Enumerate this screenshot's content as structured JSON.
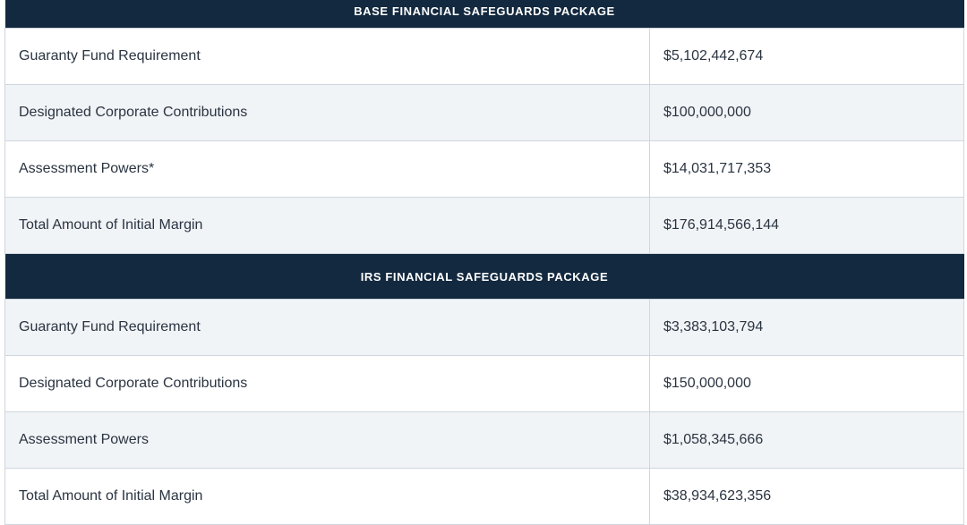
{
  "sections": [
    {
      "title": "BASE FINANCIAL SAFEGUARDS PACKAGE",
      "rows": [
        {
          "label": "Guaranty Fund Requirement",
          "value": "$5,102,442,674"
        },
        {
          "label": "Designated Corporate Contributions",
          "value": "$100,000,000"
        },
        {
          "label": "Assessment Powers*",
          "value": "$14,031,717,353"
        },
        {
          "label": "Total Amount of Initial Margin",
          "value": "$176,914,566,144"
        }
      ]
    },
    {
      "title": "IRS FINANCIAL SAFEGUARDS PACKAGE",
      "rows": [
        {
          "label": "Guaranty Fund Requirement",
          "value": "$3,383,103,794"
        },
        {
          "label": "Designated Corporate Contributions",
          "value": "$150,000,000"
        },
        {
          "label": "Assessment Powers",
          "value": "$1,058,345,666"
        },
        {
          "label": "Total Amount of Initial Margin",
          "value": "$38,934,623,356"
        }
      ]
    }
  ]
}
